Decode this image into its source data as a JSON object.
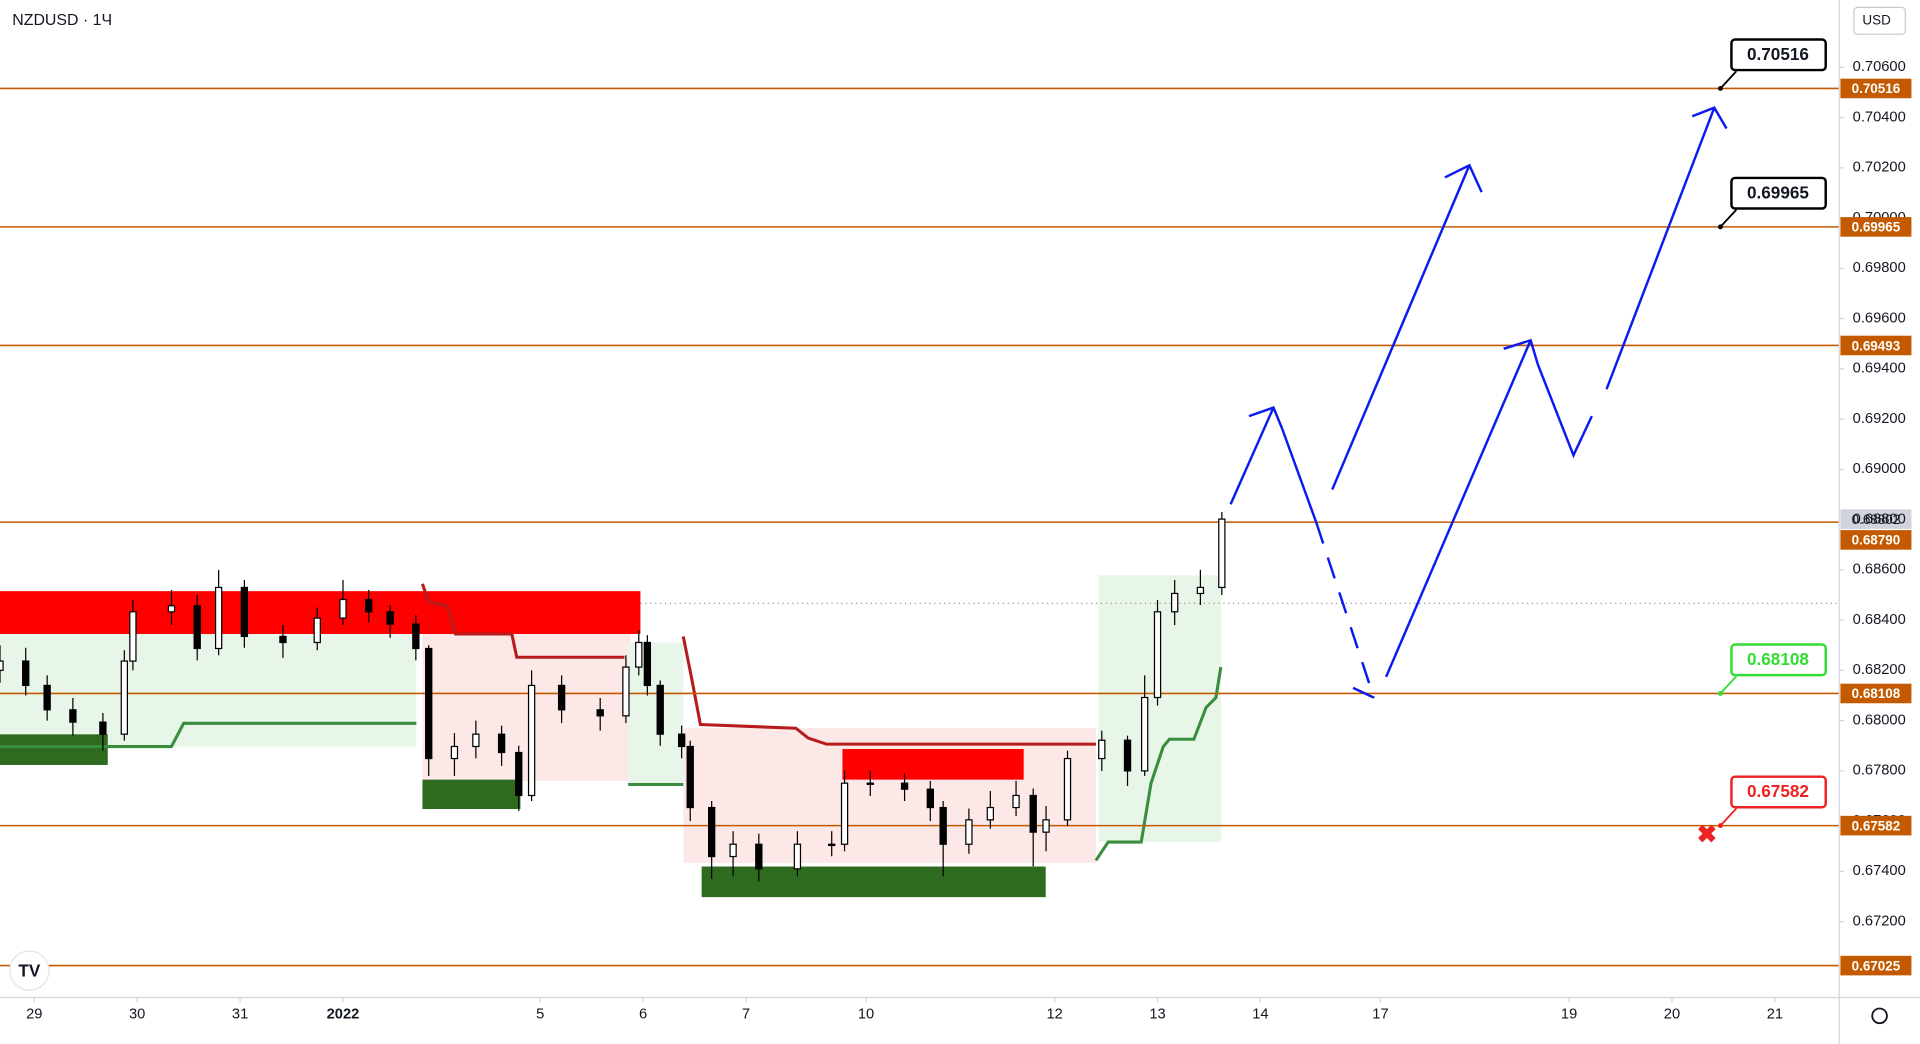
{
  "chart_data": {
    "type": "candlestick",
    "title": "NZDUSD · 1Ч",
    "currency": "USD",
    "xlim": [
      0,
      429
    ],
    "ylim": [
      0.66898,
      0.70868
    ],
    "grid": false,
    "up_color": "#ffffff",
    "down_color": "#000000",
    "level_color": "#c45a00",
    "last_price": {
      "value": 0.68802,
      "label": "0.68802"
    },
    "xticks": [
      {
        "value": 8,
        "label": "29"
      },
      {
        "value": 32,
        "label": "30"
      },
      {
        "value": 56,
        "label": "31"
      },
      {
        "value": 80,
        "label": "2022"
      },
      {
        "value": 126,
        "label": "5"
      },
      {
        "value": 150,
        "label": "6"
      },
      {
        "value": 174,
        "label": "7"
      },
      {
        "value": 202,
        "label": "10"
      },
      {
        "value": 246,
        "label": "12"
      },
      {
        "value": 270,
        "label": "13"
      },
      {
        "value": 294,
        "label": "14"
      },
      {
        "value": 322,
        "label": "17"
      },
      {
        "value": 366,
        "label": "19"
      },
      {
        "value": 390,
        "label": "20"
      },
      {
        "value": 414,
        "label": "21"
      }
    ],
    "yticks": [
      {
        "value": 0.672,
        "label": "0.67200"
      },
      {
        "value": 0.674,
        "label": "0.67400"
      },
      {
        "value": 0.676,
        "label": "0.67600"
      },
      {
        "value": 0.678,
        "label": "0.67800"
      },
      {
        "value": 0.68,
        "label": "0.68000"
      },
      {
        "value": 0.682,
        "label": "0.68200"
      },
      {
        "value": 0.684,
        "label": "0.68400"
      },
      {
        "value": 0.686,
        "label": "0.68600"
      },
      {
        "value": 0.688,
        "label": "0.68800"
      },
      {
        "value": 0.69,
        "label": "0.69000"
      },
      {
        "value": 0.692,
        "label": "0.69200"
      },
      {
        "value": 0.694,
        "label": "0.69400"
      },
      {
        "value": 0.696,
        "label": "0.69600"
      },
      {
        "value": 0.698,
        "label": "0.69800"
      },
      {
        "value": 0.7,
        "label": "0.70000"
      },
      {
        "value": 0.702,
        "label": "0.70200"
      },
      {
        "value": 0.704,
        "label": "0.70400"
      },
      {
        "value": 0.706,
        "label": "0.70600"
      }
    ],
    "levels": [
      {
        "value": 0.70516,
        "label": "0.70516",
        "callout_color": "#000000"
      },
      {
        "value": 0.69965,
        "label": "0.69965",
        "callout_color": "#000000"
      },
      {
        "value": 0.69493,
        "label": "0.69493"
      },
      {
        "value": 0.6879,
        "label": "0.68790"
      },
      {
        "value": 0.68108,
        "label": "0.68108",
        "callout_color": "#33dd33"
      },
      {
        "value": 0.67582,
        "label": "0.67582",
        "callout_color": "#ee2222"
      },
      {
        "value": 0.67025,
        "label": "0.67025"
      }
    ],
    "x": [
      0,
      6,
      11,
      17,
      24,
      29,
      31,
      40,
      46,
      51,
      57,
      66,
      74,
      80,
      86,
      91,
      97,
      100,
      106,
      111,
      117,
      121,
      124,
      131,
      140,
      146,
      149,
      151,
      154,
      159,
      161,
      166,
      171,
      177,
      186,
      194,
      197,
      203,
      211,
      217,
      220,
      226,
      231,
      237,
      241,
      244,
      249,
      257,
      263,
      267,
      270,
      274,
      280,
      285
    ],
    "open": [
      0.682,
      0.68237,
      0.6814,
      0.68043,
      0.67994,
      0.67946,
      0.68237,
      0.68433,
      0.68457,
      0.68287,
      0.6853,
      0.68335,
      0.68311,
      0.68408,
      0.68482,
      0.68433,
      0.68384,
      0.68287,
      0.67849,
      0.67897,
      0.67946,
      0.67873,
      0.67702,
      0.6814,
      0.68043,
      0.68019,
      0.68213,
      0.68311,
      0.6814,
      0.67946,
      0.67897,
      0.67654,
      0.67459,
      0.67508,
      0.6741,
      0.67508,
      0.67508,
      0.67751,
      0.67751,
      0.67727,
      0.67654,
      0.67508,
      0.67605,
      0.67654,
      0.67702,
      0.67556,
      0.67605,
      0.67849,
      0.67922,
      0.678,
      0.68092,
      0.68433,
      0.68506,
      0.6853
    ],
    "high": [
      0.683,
      0.6829,
      0.6818,
      0.6809,
      0.6803,
      0.6828,
      0.6848,
      0.6852,
      0.685,
      0.686,
      0.6856,
      0.6838,
      0.6845,
      0.6856,
      0.6852,
      0.6846,
      0.6842,
      0.683,
      0.6795,
      0.68,
      0.6798,
      0.679,
      0.682,
      0.6818,
      0.6809,
      0.6826,
      0.6836,
      0.6834,
      0.6816,
      0.6798,
      0.6792,
      0.6768,
      0.6756,
      0.6755,
      0.6756,
      0.6756,
      0.678,
      0.678,
      0.6779,
      0.6776,
      0.6768,
      0.6765,
      0.6772,
      0.6776,
      0.6773,
      0.6766,
      0.6788,
      0.6796,
      0.6794,
      0.6818,
      0.6848,
      0.6856,
      0.686,
      0.6883
    ],
    "low": [
      0.6815,
      0.681,
      0.68,
      0.6794,
      0.6788,
      0.6792,
      0.682,
      0.6838,
      0.6824,
      0.6826,
      0.6829,
      0.6825,
      0.6828,
      0.6838,
      0.6839,
      0.6833,
      0.6824,
      0.6778,
      0.6778,
      0.6785,
      0.6782,
      0.6764,
      0.6768,
      0.6799,
      0.6796,
      0.6799,
      0.6818,
      0.681,
      0.679,
      0.6785,
      0.676,
      0.6737,
      0.6738,
      0.6736,
      0.6738,
      0.6746,
      0.6748,
      0.677,
      0.6768,
      0.676,
      0.6738,
      0.6747,
      0.6757,
      0.6762,
      0.6742,
      0.6748,
      0.6758,
      0.678,
      0.6774,
      0.6778,
      0.6806,
      0.6838,
      0.6846,
      0.685
    ],
    "close": [
      0.68237,
      0.6814,
      0.68043,
      0.67994,
      0.67946,
      0.68237,
      0.68433,
      0.68457,
      0.68287,
      0.6853,
      0.68335,
      0.68311,
      0.68408,
      0.68482,
      0.68433,
      0.68384,
      0.68287,
      0.67849,
      0.67897,
      0.67946,
      0.67873,
      0.67702,
      0.6814,
      0.68043,
      0.68019,
      0.68213,
      0.68311,
      0.6814,
      0.67946,
      0.67897,
      0.67654,
      0.67459,
      0.67508,
      0.6741,
      0.67508,
      0.67508,
      0.67751,
      0.67751,
      0.67727,
      0.67654,
      0.67508,
      0.67605,
      0.67654,
      0.67702,
      0.67556,
      0.67605,
      0.67849,
      0.67922,
      0.678,
      0.68092,
      0.68433,
      0.68506,
      0.6853,
      0.68802
    ]
  }
}
